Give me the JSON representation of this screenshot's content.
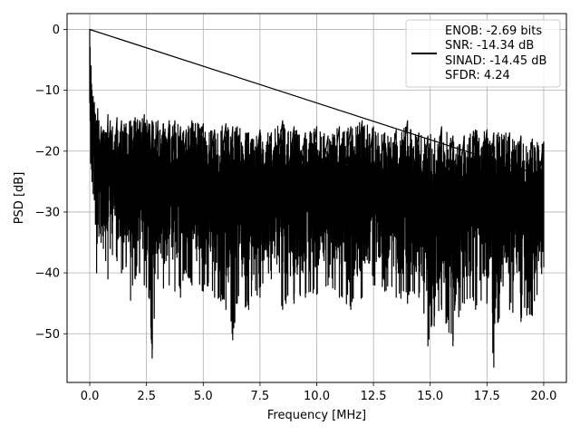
{
  "chart_data": {
    "type": "line",
    "title": "",
    "xlabel": "Frequency [MHz]",
    "ylabel": "PSD [dB]",
    "xlim": [
      -1.0,
      21.0
    ],
    "ylim": [
      -58.0,
      2.6
    ],
    "xticks": [
      0.0,
      2.5,
      5.0,
      7.5,
      10.0,
      12.5,
      15.0,
      17.5,
      20.0
    ],
    "xtick_labels": [
      "0.0",
      "2.5",
      "5.0",
      "7.5",
      "10.0",
      "12.5",
      "15.0",
      "17.5",
      "20.0"
    ],
    "yticks": [
      0,
      -10,
      -20,
      -30,
      -40,
      -50
    ],
    "ytick_labels": [
      "0",
      "−10",
      "−20",
      "−30",
      "−40",
      "−50"
    ],
    "grid": true,
    "legend_position": "top-right",
    "series": [
      {
        "color": "#000000",
        "x": [
          0.0,
          0.02,
          0.04,
          0.06,
          0.08,
          0.1,
          0.15,
          0.2,
          0.25,
          0.3,
          0.35,
          0.4,
          0.5,
          0.6,
          0.7,
          0.8,
          0.9,
          1.0,
          1.2,
          1.4,
          1.6,
          1.8,
          2.0,
          2.2,
          2.4,
          2.6,
          2.75,
          3.0,
          3.25,
          3.5,
          3.75,
          4.0,
          4.25,
          4.5,
          5.0,
          5.5,
          6.0,
          6.3,
          6.5,
          7.0,
          7.5,
          8.0,
          8.5,
          9.0,
          9.5,
          10.0,
          10.5,
          11.0,
          11.5,
          12.0,
          12.5,
          13.0,
          13.5,
          14.0,
          14.5,
          14.9,
          15.5,
          16.0,
          16.5,
          17.0,
          17.5,
          17.8,
          18.0,
          18.5,
          19.0,
          19.5,
          20.0
        ],
        "y_max": [
          0.0,
          -3.0,
          -8.0,
          -6.0,
          -9.0,
          -10.0,
          -11.0,
          -12.0,
          -14.0,
          -15.0,
          -13.0,
          -15.0,
          -16.0,
          -16.5,
          -17.0,
          -14.0,
          -15.0,
          -16.0,
          -14.5,
          -15.0,
          -15.5,
          -15.0,
          -14.5,
          -15.0,
          -14.0,
          -15.5,
          -15.0,
          -15.0,
          -15.5,
          -15.0,
          -15.0,
          -16.0,
          -16.5,
          -15.0,
          -15.5,
          -16.5,
          -15.5,
          -16.0,
          -16.0,
          -17.0,
          -16.5,
          -17.0,
          -15.0,
          -16.0,
          -17.0,
          -16.0,
          -17.5,
          -16.0,
          -16.0,
          -15.0,
          -16.0,
          -17.0,
          -16.5,
          -15.0,
          -17.0,
          -17.5,
          -16.0,
          -17.5,
          -17.5,
          -16.5,
          -16.5,
          -17.0,
          -17.0,
          -17.0,
          -17.5,
          -18.0,
          -18.5
        ],
        "y_min": [
          -12.0,
          -15.0,
          -22.0,
          -20.0,
          -23.0,
          -25.0,
          -27.0,
          -28.0,
          -32.0,
          -40.0,
          -32.0,
          -34.0,
          -35.0,
          -36.0,
          -38.0,
          -41.0,
          -36.0,
          -37.0,
          -38.0,
          -40.0,
          -39.0,
          -44.5,
          -41.0,
          -40.0,
          -42.0,
          -44.0,
          -54.0,
          -41.0,
          -42.5,
          -42.0,
          -43.0,
          -44.0,
          -40.0,
          -42.0,
          -43.0,
          -44.0,
          -46.0,
          -51.0,
          -45.0,
          -46.0,
          -44.0,
          -41.0,
          -46.0,
          -45.0,
          -44.0,
          -43.5,
          -42.0,
          -44.0,
          -46.0,
          -44.0,
          -42.0,
          -43.0,
          -44.0,
          -45.0,
          -44.0,
          -52.0,
          -46.0,
          -52.0,
          -45.0,
          -46.0,
          -45.0,
          -55.5,
          -48.0,
          -46.0,
          -48.0,
          -47.0,
          -39.0
        ]
      }
    ],
    "legend": {
      "lines": [
        "ENOB: -2.69 bits",
        "SNR: -14.34 dB",
        "SINAD: -14.45 dB",
        "SFDR: 4.24"
      ]
    }
  }
}
